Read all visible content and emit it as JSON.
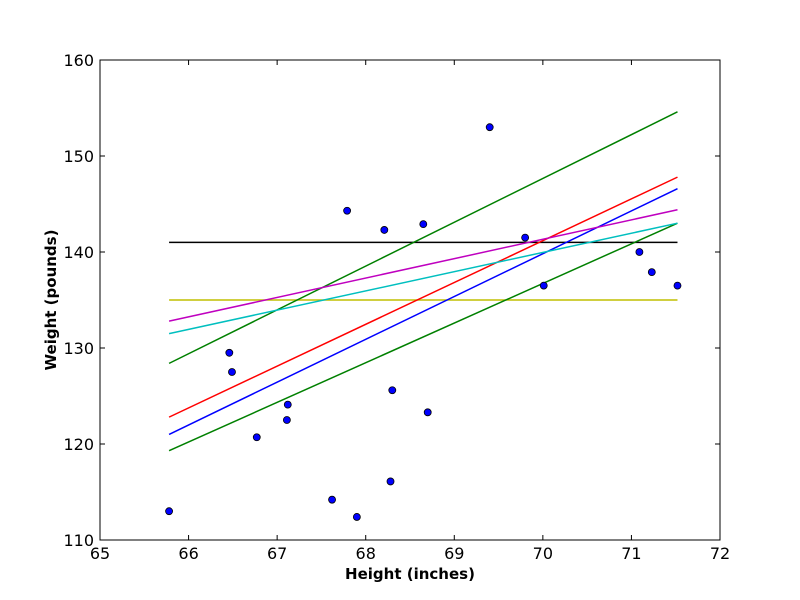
{
  "chart_data": {
    "type": "scatter",
    "title": "",
    "xlabel": "Height (inches)",
    "ylabel": "Weight (pounds)",
    "xlim": [
      65,
      72
    ],
    "ylim": [
      110,
      160
    ],
    "xticks": [
      "65",
      "66",
      "67",
      "68",
      "69",
      "70",
      "71",
      "72"
    ],
    "yticks": [
      "110",
      "120",
      "130",
      "140",
      "150",
      "160"
    ],
    "grid": false,
    "points": [
      {
        "x": 65.78,
        "y": 113.0
      },
      {
        "x": 66.46,
        "y": 129.5
      },
      {
        "x": 66.49,
        "y": 127.5
      },
      {
        "x": 66.77,
        "y": 120.7
      },
      {
        "x": 67.11,
        "y": 122.5
      },
      {
        "x": 67.12,
        "y": 124.1
      },
      {
        "x": 67.62,
        "y": 114.2
      },
      {
        "x": 67.79,
        "y": 144.3
      },
      {
        "x": 67.9,
        "y": 112.4
      },
      {
        "x": 68.21,
        "y": 142.3
      },
      {
        "x": 68.28,
        "y": 116.1
      },
      {
        "x": 68.3,
        "y": 125.6
      },
      {
        "x": 68.65,
        "y": 142.9
      },
      {
        "x": 68.7,
        "y": 123.3
      },
      {
        "x": 69.4,
        "y": 153.0
      },
      {
        "x": 69.8,
        "y": 141.5
      },
      {
        "x": 70.01,
        "y": 136.5
      },
      {
        "x": 71.09,
        "y": 140.0
      },
      {
        "x": 71.23,
        "y": 137.9
      },
      {
        "x": 71.52,
        "y": 136.5
      }
    ],
    "point_color": "#0000ff",
    "lines": [
      {
        "color": "#000000",
        "x": [
          65.78,
          71.52
        ],
        "y": [
          141.0,
          141.0
        ]
      },
      {
        "color": "#c0bf00",
        "x": [
          65.78,
          71.52
        ],
        "y": [
          135.0,
          135.0
        ]
      },
      {
        "color": "#008000",
        "x": [
          65.78,
          71.52
        ],
        "y": [
          128.4,
          154.6
        ]
      },
      {
        "color": "#ff0000",
        "x": [
          65.78,
          71.52
        ],
        "y": [
          122.8,
          147.8
        ]
      },
      {
        "color": "#0000ff",
        "x": [
          65.78,
          71.52
        ],
        "y": [
          121.0,
          146.6
        ]
      },
      {
        "color": "#008000",
        "x": [
          65.78,
          71.52
        ],
        "y": [
          119.3,
          143.0
        ]
      },
      {
        "color": "#bf00bf",
        "x": [
          65.78,
          71.52
        ],
        "y": [
          132.8,
          144.4
        ]
      },
      {
        "color": "#00bfbf",
        "x": [
          65.78,
          71.52
        ],
        "y": [
          131.5,
          143.0
        ]
      }
    ]
  }
}
